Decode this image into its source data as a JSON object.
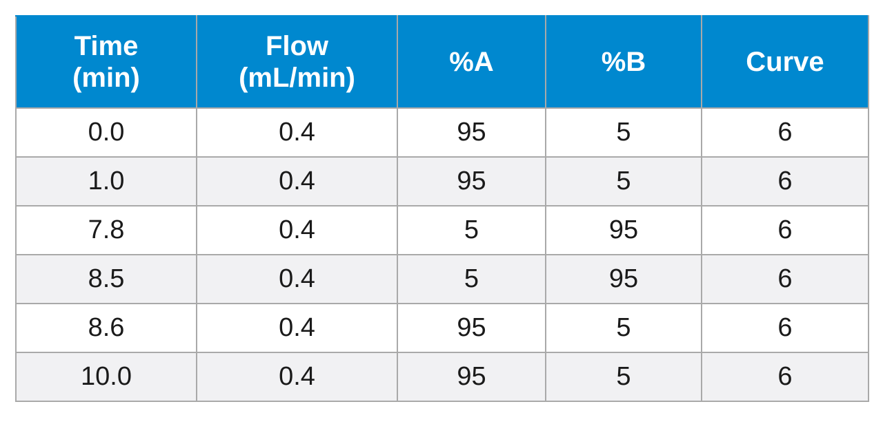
{
  "table": {
    "headers": [
      {
        "lines": [
          "Time",
          "(min)"
        ]
      },
      {
        "lines": [
          "Flow",
          "(mL/min)"
        ]
      },
      {
        "lines": [
          "%A"
        ]
      },
      {
        "lines": [
          "%B"
        ]
      },
      {
        "lines": [
          "Curve"
        ]
      }
    ],
    "rows": [
      [
        "0.0",
        "0.4",
        "95",
        "5",
        "6"
      ],
      [
        "1.0",
        "0.4",
        "95",
        "5",
        "6"
      ],
      [
        "7.8",
        "0.4",
        "5",
        "95",
        "6"
      ],
      [
        "8.5",
        "0.4",
        "5",
        "95",
        "6"
      ],
      [
        "8.6",
        "0.4",
        "95",
        "5",
        "6"
      ],
      [
        "10.0",
        "0.4",
        "95",
        "5",
        "6"
      ]
    ]
  },
  "colors": {
    "header_bg": "#0088cf",
    "header_text": "#ffffff",
    "row_alt_bg": "#f1f1f3",
    "border": "#a9a9a9"
  }
}
